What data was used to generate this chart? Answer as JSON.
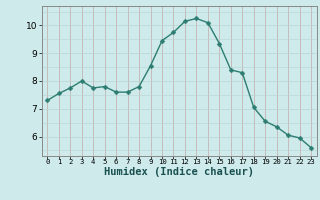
{
  "x": [
    0,
    1,
    2,
    3,
    4,
    5,
    6,
    7,
    8,
    9,
    10,
    11,
    12,
    13,
    14,
    15,
    16,
    17,
    18,
    19,
    20,
    21,
    22,
    23
  ],
  "y": [
    7.3,
    7.55,
    7.75,
    8.0,
    7.75,
    7.8,
    7.6,
    7.6,
    7.8,
    8.55,
    9.45,
    9.75,
    10.15,
    10.25,
    10.1,
    9.35,
    8.4,
    8.3,
    7.05,
    6.55,
    6.35,
    6.05,
    5.95,
    5.6
  ],
  "line_color": "#2d7d72",
  "marker": "D",
  "marker_size": 2.5,
  "bg_color": "#ceeaea",
  "grid_color_v": "#c4a8a8",
  "grid_color_h": "#b8d4d4",
  "xlabel": "Humidex (Indice chaleur)",
  "xlabel_fontsize": 7.5,
  "ylabel_ticks": [
    6,
    7,
    8,
    9,
    10
  ],
  "xlim": [
    -0.5,
    23.5
  ],
  "ylim": [
    5.3,
    10.7
  ],
  "xtick_labels": [
    "0",
    "1",
    "2",
    "3",
    "4",
    "5",
    "6",
    "7",
    "8",
    "9",
    "10",
    "11",
    "12",
    "13",
    "14",
    "15",
    "16",
    "17",
    "18",
    "19",
    "20",
    "21",
    "22",
    "23"
  ]
}
